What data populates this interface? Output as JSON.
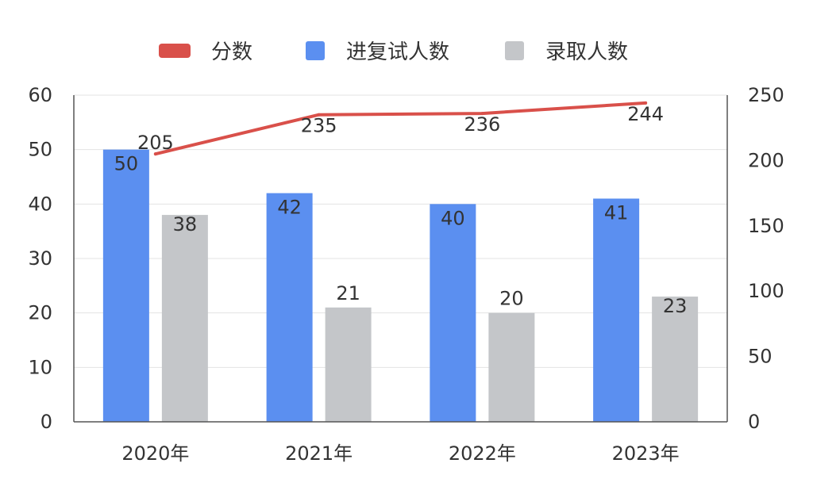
{
  "chart_data": {
    "type": "bar",
    "categories": [
      "2020年",
      "2021年",
      "2022年",
      "2023年"
    ],
    "series": [
      {
        "name": "分数",
        "type": "line",
        "axis": "right",
        "color": "#d9504a",
        "values": [
          205,
          235,
          236,
          244
        ]
      },
      {
        "name": "进复试人数",
        "type": "bar",
        "axis": "left",
        "color": "#5b8ff0",
        "values": [
          50,
          42,
          40,
          41
        ]
      },
      {
        "name": "录取人数",
        "type": "bar",
        "axis": "left",
        "color": "#c4c6c9",
        "values": [
          38,
          21,
          20,
          23
        ]
      }
    ],
    "y_left": {
      "range": [
        0,
        60
      ],
      "ticks": [
        "0",
        "10",
        "20",
        "30",
        "40",
        "50",
        "60"
      ]
    },
    "y_right": {
      "range": [
        0,
        250
      ],
      "ticks": [
        "0",
        "50",
        "100",
        "150",
        "200",
        "250"
      ]
    },
    "grid": true,
    "legend": "top-center",
    "axis_color": "#555555",
    "grid_color": "#e3e3e3"
  }
}
